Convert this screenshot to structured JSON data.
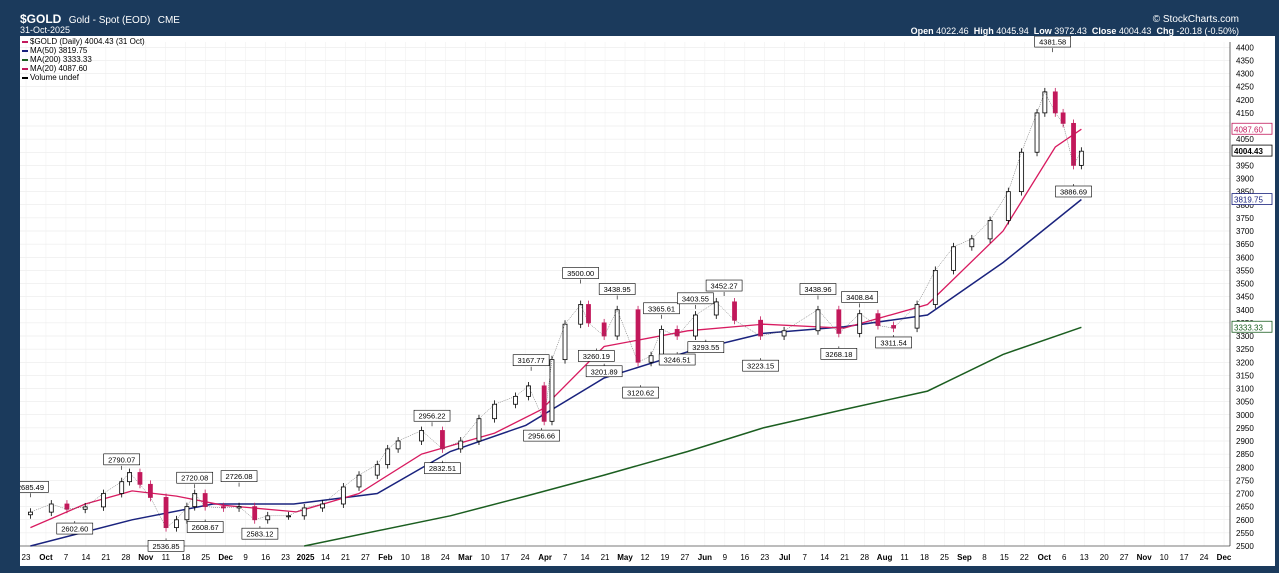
{
  "header": {
    "symbol": "$GOLD",
    "name": "Gold - Spot (EOD)",
    "exchange": "CME",
    "date": "31-Oct-2025",
    "brand": "© StockCharts.com",
    "open_label": "Open",
    "open": "4022.46",
    "high_label": "High",
    "high": "4045.94",
    "low_label": "Low",
    "low": "3972.43",
    "close_label": "Close",
    "close": "4004.43",
    "chg_label": "Chg",
    "chg": "-20.18 (-0.50%)"
  },
  "legend": [
    {
      "text": "$GOLD (Daily) 4004.43 (31 Oct)",
      "color": "#c2185b"
    },
    {
      "text": "MA(50) 3819.75",
      "color": "#1a237e"
    },
    {
      "text": "MA(200) 3333.33",
      "color": "#1b5e20"
    },
    {
      "text": "MA(20) 4087.60",
      "color": "#c2185b"
    },
    {
      "text": "Volume undef",
      "color": "#000000"
    }
  ],
  "chart_data": {
    "type": "line",
    "title": "$GOLD (Daily) 4004.43 (31 Oct)",
    "ylim": [
      2500,
      4420
    ],
    "y_ticks": [
      2500,
      2550,
      2600,
      2650,
      2700,
      2750,
      2800,
      2850,
      2900,
      2950,
      3000,
      3050,
      3100,
      3150,
      3200,
      3250,
      3300,
      3350,
      3400,
      3450,
      3500,
      3550,
      3600,
      3650,
      3700,
      3750,
      3800,
      3850,
      3900,
      3950,
      4000,
      4050,
      4100,
      4150,
      4200,
      4250,
      4300,
      4350,
      4400
    ],
    "x_tick_labels": [
      "23",
      "Oct",
      "7",
      "14",
      "21",
      "28",
      "Nov",
      "11",
      "18",
      "25",
      "Dec",
      "9",
      "16",
      "23",
      "2025",
      "14",
      "21",
      "27",
      "Feb",
      "10",
      "18",
      "24",
      "Mar",
      "10",
      "17",
      "24",
      "Apr",
      "7",
      "14",
      "21",
      "May",
      "12",
      "19",
      "27",
      "Jun",
      "9",
      "16",
      "23",
      "Jul",
      "7",
      "14",
      "21",
      "28",
      "Aug",
      "11",
      "18",
      "25",
      "Sep",
      "8",
      "15",
      "22",
      "Oct",
      "6",
      "13",
      "20",
      "27",
      "Nov",
      "10",
      "17",
      "24",
      "Dec"
    ],
    "price_series": {
      "name": "$GOLD",
      "x": [
        "2024-09-23",
        "2024-10-01",
        "2024-10-07",
        "2024-10-14",
        "2024-10-21",
        "2024-10-28",
        "2024-10-31",
        "2024-11-04",
        "2024-11-08",
        "2024-11-14",
        "2024-11-18",
        "2024-11-22",
        "2024-11-25",
        "2024-11-29",
        "2024-12-06",
        "2024-12-12",
        "2024-12-18",
        "2024-12-23",
        "2024-12-31",
        "2025-01-06",
        "2025-01-13",
        "2025-01-21",
        "2025-01-27",
        "2025-02-03",
        "2025-02-07",
        "2025-02-11",
        "2025-02-20",
        "2025-02-28",
        "2025-03-07",
        "2025-03-14",
        "2025-03-20",
        "2025-03-28",
        "2025-04-02",
        "2025-04-08",
        "2025-04-11",
        "2025-04-16",
        "2025-04-22",
        "2025-04-25",
        "2025-05-01",
        "2025-05-06",
        "2025-05-14",
        "2025-05-19",
        "2025-05-23",
        "2025-05-29",
        "2025-06-05",
        "2025-06-13",
        "2025-06-20",
        "2025-06-30",
        "2025-07-09",
        "2025-07-22",
        "2025-07-30",
        "2025-08-07",
        "2025-08-14",
        "2025-08-20",
        "2025-08-29",
        "2025-09-05",
        "2025-09-12",
        "2025-09-19",
        "2025-09-26",
        "2025-10-03",
        "2025-10-08",
        "2025-10-14",
        "2025-10-17",
        "2025-10-21",
        "2025-10-24",
        "2025-10-28",
        "2025-10-31"
      ],
      "y": [
        2629,
        2660,
        2640,
        2649,
        2700,
        2745,
        2780,
        2735,
        2685,
        2570,
        2600,
        2650,
        2700,
        2650,
        2645,
        2650,
        2600,
        2615,
        2615,
        2645,
        2660,
        2725,
        2770,
        2810,
        2870,
        2900,
        2940,
        2870,
        2900,
        2985,
        3040,
        3070,
        3110,
        2975,
        3210,
        3345,
        3420,
        3350,
        3300,
        3400,
        3200,
        3225,
        3325,
        3300,
        3380,
        3430,
        3360,
        3300,
        3320,
        3400,
        3310,
        3385,
        3340,
        3330,
        3420,
        3550,
        3640,
        3670,
        3740,
        3850,
        4000,
        4150,
        4230,
        4150,
        4110,
        3950,
        4004
      ]
    },
    "ma20": {
      "name": "MA(20) 4087.60",
      "x": [
        "2024-09-23",
        "2024-10-14",
        "2024-11-01",
        "2024-11-18",
        "2024-12-06",
        "2025-01-03",
        "2025-01-27",
        "2025-02-20",
        "2025-03-20",
        "2025-04-07",
        "2025-05-01",
        "2025-06-02",
        "2025-07-01",
        "2025-08-01",
        "2025-09-02",
        "2025-10-01",
        "2025-10-21",
        "2025-10-31"
      ],
      "y": [
        2570,
        2660,
        2710,
        2690,
        2655,
        2630,
        2700,
        2850,
        2930,
        3020,
        3260,
        3320,
        3345,
        3330,
        3420,
        3700,
        4020,
        4088
      ]
    },
    "ma50": {
      "name": "MA(50) 3819.75",
      "x": [
        "2024-09-23",
        "2024-11-01",
        "2024-12-02",
        "2025-01-02",
        "2025-02-03",
        "2025-03-03",
        "2025-04-01",
        "2025-05-01",
        "2025-06-02",
        "2025-07-01",
        "2025-08-01",
        "2025-09-02",
        "2025-10-01",
        "2025-10-31"
      ],
      "y": [
        2500,
        2600,
        2660,
        2660,
        2700,
        2860,
        2960,
        3140,
        3240,
        3310,
        3335,
        3380,
        3580,
        3820
      ]
    },
    "ma200": {
      "name": "MA(200) 3333.33",
      "x": [
        "2025-01-06",
        "2025-03-03",
        "2025-04-01",
        "2025-05-01",
        "2025-06-02",
        "2025-07-01",
        "2025-08-01",
        "2025-09-02",
        "2025-10-01",
        "2025-10-31"
      ],
      "y": [
        2500,
        2615,
        2690,
        2770,
        2860,
        2950,
        3020,
        3090,
        3230,
        3333
      ]
    },
    "annotations": [
      {
        "x": "2024-09-23",
        "y": 2685.49,
        "label": "2685.49",
        "pos": "above"
      },
      {
        "x": "2024-10-28",
        "y": 2790.07,
        "label": "2790.07",
        "pos": "above"
      },
      {
        "x": "2024-10-10",
        "y": 2602.6,
        "label": "2602.60",
        "pos": "below"
      },
      {
        "x": "2024-11-14",
        "y": 2536.85,
        "label": "2536.85",
        "pos": "below"
      },
      {
        "x": "2024-11-25",
        "y": 2720.08,
        "label": "2720.08",
        "pos": "above"
      },
      {
        "x": "2024-11-29",
        "y": 2608.67,
        "label": "2608.67",
        "pos": "below"
      },
      {
        "x": "2024-12-12",
        "y": 2726.08,
        "label": "2726.08",
        "pos": "above"
      },
      {
        "x": "2024-12-20",
        "y": 2583.12,
        "label": "2583.12",
        "pos": "below"
      },
      {
        "x": "2025-02-24",
        "y": 2956.22,
        "label": "2956.22",
        "pos": "above"
      },
      {
        "x": "2025-02-28",
        "y": 2832.51,
        "label": "2832.51",
        "pos": "below"
      },
      {
        "x": "2025-04-03",
        "y": 3167.77,
        "label": "3167.77",
        "pos": "above"
      },
      {
        "x": "2025-04-07",
        "y": 2956.66,
        "label": "2956.66",
        "pos": "below"
      },
      {
        "x": "2025-04-22",
        "y": 3500.0,
        "label": "3500.00",
        "pos": "above"
      },
      {
        "x": "2025-04-28",
        "y": 3260.19,
        "label": "3260.19",
        "pos": "below"
      },
      {
        "x": "2025-05-06",
        "y": 3438.95,
        "label": "3438.95",
        "pos": "above"
      },
      {
        "x": "2025-05-01",
        "y": 3201.89,
        "label": "3201.89",
        "pos": "below"
      },
      {
        "x": "2025-05-15",
        "y": 3120.62,
        "label": "3120.62",
        "pos": "below"
      },
      {
        "x": "2025-05-23",
        "y": 3365.61,
        "label": "3365.61",
        "pos": "above"
      },
      {
        "x": "2025-05-29",
        "y": 3246.51,
        "label": "3246.51",
        "pos": "below"
      },
      {
        "x": "2025-06-05",
        "y": 3403.55,
        "label": "3403.55",
        "pos": "above"
      },
      {
        "x": "2025-06-09",
        "y": 3293.55,
        "label": "3293.55",
        "pos": "below"
      },
      {
        "x": "2025-06-16",
        "y": 3452.27,
        "label": "3452.27",
        "pos": "above"
      },
      {
        "x": "2025-06-30",
        "y": 3223.15,
        "label": "3223.15",
        "pos": "below"
      },
      {
        "x": "2025-07-22",
        "y": 3438.96,
        "label": "3438.96",
        "pos": "above"
      },
      {
        "x": "2025-07-30",
        "y": 3268.18,
        "label": "3268.18",
        "pos": "below"
      },
      {
        "x": "2025-08-07",
        "y": 3408.84,
        "label": "3408.84",
        "pos": "above"
      },
      {
        "x": "2025-08-20",
        "y": 3311.54,
        "label": "3311.54",
        "pos": "below"
      },
      {
        "x": "2025-10-20",
        "y": 4381.58,
        "label": "4381.58",
        "pos": "above"
      },
      {
        "x": "2025-10-28",
        "y": 3886.69,
        "label": "3886.69",
        "pos": "below"
      }
    ],
    "right_labels": [
      {
        "y": 4087.6,
        "label": "4087.60",
        "color": "#c2185b"
      },
      {
        "y": 4004.43,
        "label": "4004.43",
        "color": "#000000",
        "bold": true
      },
      {
        "y": 3819.75,
        "label": "3819.75",
        "color": "#1a237e"
      },
      {
        "y": 3333.33,
        "label": "3333.33",
        "color": "#1b5e20"
      }
    ],
    "colors": {
      "up": "#000000",
      "down": "#c2185b",
      "ma20": "#d81b60",
      "ma50": "#1a237e",
      "ma200": "#1b5e20"
    }
  }
}
